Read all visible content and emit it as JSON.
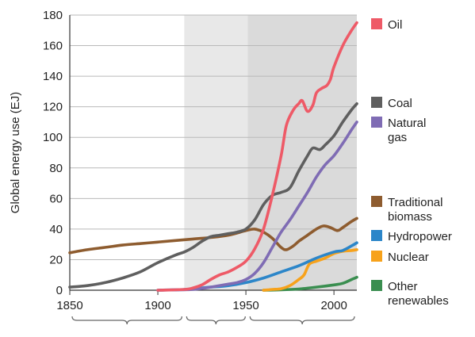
{
  "chart_data": {
    "type": "line",
    "ylabel": "Global energy use (EJ)",
    "xlim": [
      1850,
      2013
    ],
    "ylim": [
      0,
      180
    ],
    "x_ticks": [
      1850,
      1900,
      1950,
      2000
    ],
    "y_ticks": [
      0,
      20,
      40,
      60,
      80,
      100,
      120,
      140,
      160,
      180
    ],
    "grid": "horizontal",
    "legend_position": "right",
    "shaded_periods": [
      {
        "from": 1915,
        "to": 1951,
        "color": "#e8e8e8"
      },
      {
        "from": 1951,
        "to": 2013,
        "color": "#dadada"
      }
    ],
    "series": [
      {
        "name": "Oil",
        "color": "#ee5a67",
        "points": [
          [
            1900,
            0
          ],
          [
            1915,
            0.5
          ],
          [
            1920,
            1.5
          ],
          [
            1925,
            3.5
          ],
          [
            1930,
            7
          ],
          [
            1935,
            10
          ],
          [
            1940,
            12
          ],
          [
            1945,
            15
          ],
          [
            1950,
            19
          ],
          [
            1955,
            27
          ],
          [
            1960,
            40
          ],
          [
            1965,
            62
          ],
          [
            1970,
            88
          ],
          [
            1973,
            108
          ],
          [
            1977,
            118
          ],
          [
            1980,
            122
          ],
          [
            1982,
            124
          ],
          [
            1985,
            117
          ],
          [
            1988,
            121
          ],
          [
            1990,
            129
          ],
          [
            1993,
            132
          ],
          [
            1996,
            134
          ],
          [
            1998,
            138
          ],
          [
            2000,
            146
          ],
          [
            2005,
            160
          ],
          [
            2010,
            170
          ],
          [
            2013,
            175
          ]
        ]
      },
      {
        "name": "Coal",
        "color": "#5f5f5f",
        "points": [
          [
            1850,
            2
          ],
          [
            1860,
            3
          ],
          [
            1870,
            5
          ],
          [
            1880,
            8
          ],
          [
            1890,
            12
          ],
          [
            1900,
            18
          ],
          [
            1910,
            23
          ],
          [
            1915,
            25
          ],
          [
            1920,
            28
          ],
          [
            1925,
            32
          ],
          [
            1930,
            35
          ],
          [
            1935,
            36
          ],
          [
            1940,
            37
          ],
          [
            1945,
            38
          ],
          [
            1950,
            40
          ],
          [
            1955,
            46
          ],
          [
            1960,
            56
          ],
          [
            1965,
            62
          ],
          [
            1970,
            64
          ],
          [
            1975,
            67
          ],
          [
            1980,
            78
          ],
          [
            1985,
            88
          ],
          [
            1988,
            93
          ],
          [
            1992,
            92
          ],
          [
            1995,
            95
          ],
          [
            2000,
            101
          ],
          [
            2005,
            110
          ],
          [
            2010,
            118
          ],
          [
            2013,
            122
          ]
        ]
      },
      {
        "name": "Natural gas",
        "color": "#7f6cb4",
        "points": [
          [
            1900,
            0
          ],
          [
            1915,
            0.3
          ],
          [
            1920,
            0.5
          ],
          [
            1930,
            2
          ],
          [
            1940,
            4
          ],
          [
            1945,
            5
          ],
          [
            1950,
            7
          ],
          [
            1955,
            11
          ],
          [
            1960,
            18
          ],
          [
            1965,
            28
          ],
          [
            1970,
            38
          ],
          [
            1975,
            46
          ],
          [
            1980,
            55
          ],
          [
            1985,
            64
          ],
          [
            1990,
            74
          ],
          [
            1995,
            82
          ],
          [
            2000,
            88
          ],
          [
            2005,
            96
          ],
          [
            2010,
            105
          ],
          [
            2013,
            110
          ]
        ]
      },
      {
        "name": "Traditional biomass",
        "color": "#8e5c2f",
        "points": [
          [
            1850,
            24.5
          ],
          [
            1860,
            26.5
          ],
          [
            1870,
            28
          ],
          [
            1880,
            29.5
          ],
          [
            1890,
            30.5
          ],
          [
            1900,
            31.5
          ],
          [
            1910,
            32.5
          ],
          [
            1920,
            33.5
          ],
          [
            1930,
            34.5
          ],
          [
            1940,
            36
          ],
          [
            1950,
            39
          ],
          [
            1955,
            40
          ],
          [
            1960,
            38
          ],
          [
            1965,
            34
          ],
          [
            1970,
            28
          ],
          [
            1973,
            26.5
          ],
          [
            1977,
            29
          ],
          [
            1980,
            32
          ],
          [
            1985,
            36
          ],
          [
            1990,
            40
          ],
          [
            1994,
            42
          ],
          [
            1998,
            41
          ],
          [
            2002,
            39
          ],
          [
            2005,
            41
          ],
          [
            2010,
            45
          ],
          [
            2013,
            47
          ]
        ]
      },
      {
        "name": "Hydropower",
        "color": "#2c86c9",
        "points": [
          [
            1900,
            0
          ],
          [
            1915,
            0.5
          ],
          [
            1920,
            1
          ],
          [
            1930,
            2
          ],
          [
            1940,
            3
          ],
          [
            1950,
            5
          ],
          [
            1960,
            8
          ],
          [
            1970,
            12
          ],
          [
            1980,
            16
          ],
          [
            1990,
            21
          ],
          [
            2000,
            25
          ],
          [
            2005,
            26
          ],
          [
            2010,
            29
          ],
          [
            2013,
            31
          ]
        ]
      },
      {
        "name": "Nuclear",
        "color": "#f7a21b",
        "points": [
          [
            1960,
            0
          ],
          [
            1965,
            0.5
          ],
          [
            1970,
            1
          ],
          [
            1975,
            3
          ],
          [
            1980,
            7
          ],
          [
            1983,
            10
          ],
          [
            1986,
            17
          ],
          [
            1990,
            19
          ],
          [
            1995,
            21
          ],
          [
            2000,
            24
          ],
          [
            2005,
            25.5
          ],
          [
            2010,
            26
          ],
          [
            2013,
            26.5
          ]
        ]
      },
      {
        "name": "Other renewables",
        "color": "#3a8e50",
        "points": [
          [
            1960,
            0
          ],
          [
            1970,
            0.3
          ],
          [
            1980,
            0.8
          ],
          [
            1990,
            2
          ],
          [
            2000,
            3.5
          ],
          [
            2005,
            4.5
          ],
          [
            2010,
            7
          ],
          [
            2013,
            8.5
          ]
        ]
      }
    ],
    "legend": [
      {
        "lines": [
          "Oil"
        ],
        "color": "#ee5a67"
      },
      {
        "lines": [
          "Coal"
        ],
        "color": "#5f5f5f"
      },
      {
        "lines": [
          "Natural",
          "gas"
        ],
        "color": "#7f6cb4"
      },
      {
        "lines": [
          "Traditional",
          "biomass"
        ],
        "color": "#8e5c2f"
      },
      {
        "lines": [
          "Hydropower"
        ],
        "color": "#2c86c9"
      },
      {
        "lines": [
          "Nuclear"
        ],
        "color": "#f7a21b"
      },
      {
        "lines": [
          "Other",
          "renewables"
        ],
        "color": "#3a8e50"
      }
    ],
    "period_braces": [
      [
        1850,
        1915
      ],
      [
        1915,
        1951
      ],
      [
        1951,
        2013
      ]
    ]
  }
}
